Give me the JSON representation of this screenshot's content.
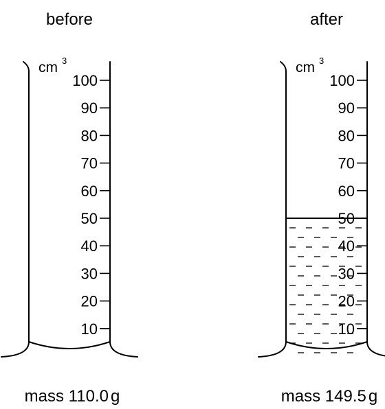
{
  "cylinders": [
    {
      "id": "before",
      "label": "before",
      "unit": "cm",
      "unit_exponent": "3",
      "scale": [
        100,
        90,
        80,
        70,
        60,
        50,
        40,
        30,
        20,
        10
      ],
      "liquid_level": 0,
      "mass_prefix": "mass 110.0",
      "mass_unit": "g"
    },
    {
      "id": "after",
      "label": "after",
      "unit": "cm",
      "unit_exponent": "3",
      "scale": [
        100,
        90,
        80,
        70,
        60,
        50,
        40,
        30,
        20,
        10
      ],
      "liquid_level": 50,
      "mass_prefix": "mass 149.5",
      "mass_unit": "g"
    }
  ]
}
